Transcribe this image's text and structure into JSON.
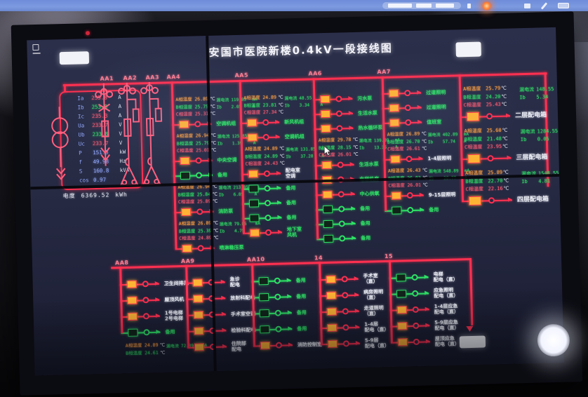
{
  "statusbar": {
    "record_dot_color": "#ff7b2d",
    "icons": [
      "status-pill",
      "record-dot-icon",
      "signal-icon",
      "pen-icon",
      "battery-icon"
    ]
  },
  "screen": {
    "title": "安国市医院新楼0.4kV一段接线图",
    "labels": {
      "phase_a": "A相温度",
      "phase_b": "B相温度",
      "phase_c": "C相温度",
      "leak": "漏电流",
      "ib": "Ib",
      "celsius": "℃",
      "ma": "mA",
      "amp": "A"
    },
    "incoming": {
      "meters": [
        {
          "k": "Ia",
          "v": "255.8",
          "u": "A",
          "c": "r"
        },
        {
          "k": "Ib",
          "v": "253.8",
          "u": "A",
          "c": "g"
        },
        {
          "k": "Ic",
          "v": "235.3",
          "u": "A",
          "c": "r"
        },
        {
          "k": "Ua",
          "v": "233.7",
          "u": "V",
          "c": "r"
        },
        {
          "k": "Ub",
          "v": "233.8",
          "u": "V",
          "c": "g"
        },
        {
          "k": "Uc",
          "v": "233.7",
          "u": "V",
          "c": "r"
        },
        {
          "k": "P",
          "v": "151.5",
          "u": "kW",
          "c": "b"
        },
        {
          "k": "f",
          "v": "49.98",
          "u": "Hz",
          "c": "b"
        },
        {
          "k": "S",
          "v": "160.8",
          "u": "kVA",
          "c": "b"
        },
        {
          "k": "cos",
          "v": "0.97",
          "u": "",
          "c": "b"
        }
      ],
      "energy": {
        "k": "电度",
        "v": "6369.52",
        "u": "kWh"
      }
    },
    "top_columns": [
      {
        "id": "AA1",
        "kind": "pt1"
      },
      {
        "id": "AA2",
        "kind": "pt2"
      },
      {
        "id": "AA3",
        "kind": "pt2"
      },
      {
        "id": "AA4",
        "rows": [
          {
            "t": "temp",
            "a": "26.89",
            "b": "25.75",
            "c": "25.31",
            "leak": "119.85",
            "ib": "2.05"
          },
          {
            "t": "f",
            "s": "on",
            "lc": "g",
            "label": "空调机组"
          },
          {
            "t": "temp",
            "a": "26.94",
            "b": "25.79",
            "c": "25.01",
            "leak": "125.85",
            "ib": "1.39"
          },
          {
            "t": "f",
            "s": "on",
            "lc": "g",
            "label": "中央空调"
          },
          {
            "t": "f",
            "s": "off",
            "lc": "g",
            "label": "备用"
          },
          {
            "t": "temp",
            "a": "26.94",
            "b": "25.84",
            "c": "25.89",
            "leak": "213.85",
            "ib": "6.85"
          },
          {
            "t": "f",
            "s": "on",
            "lc": "g",
            "label": "消防泵"
          },
          {
            "t": "temp",
            "a": "26.89",
            "b": "25.39",
            "c": "24.89",
            "leak": "79.85",
            "ib": "4.75"
          },
          {
            "t": "f",
            "s": "on",
            "lc": "g",
            "label": "喷淋稳压泵"
          }
        ]
      },
      {
        "id": "AA5",
        "rows": [
          {
            "t": "temp",
            "a": "24.89",
            "b": "23.81",
            "c": "27.34",
            "leak": "48.55",
            "ib": "3.34"
          },
          {
            "t": "f",
            "s": "on",
            "lc": "g",
            "label": "新风机组"
          },
          {
            "t": "f",
            "s": "on",
            "lc": "g",
            "label": "空调机组"
          },
          {
            "t": "temp",
            "a": "24.89",
            "b": "24.89",
            "c": "24.43",
            "leak": "131.85",
            "ib": "37.28"
          },
          {
            "t": "f",
            "s": "on",
            "lc": "w",
            "label": "配电室\n空调"
          },
          {
            "t": "f",
            "s": "off",
            "lc": "g",
            "label": "备用"
          },
          {
            "t": "f",
            "s": "off",
            "lc": "g",
            "label": "备用"
          },
          {
            "t": "f",
            "s": "off",
            "lc": "g",
            "label": "备用"
          },
          {
            "t": "f",
            "s": "on",
            "lc": "g",
            "label": "地下室\n风机"
          }
        ]
      },
      {
        "id": "AA6",
        "rows": [
          {
            "t": "f",
            "s": "on",
            "lc": "g",
            "label": "污水泵"
          },
          {
            "t": "f",
            "s": "on",
            "lc": "g",
            "label": "生活水泵"
          },
          {
            "t": "f",
            "s": "on",
            "lc": "g",
            "label": "热水循环泵"
          },
          {
            "t": "temp",
            "a": "29.78",
            "b": "28.15",
            "c": "26.01",
            "leak": "139.89",
            "ib": "13.35"
          },
          {
            "t": "f",
            "s": "on",
            "lc": "g",
            "label": "生活水泵"
          },
          {
            "t": "f",
            "s": "on",
            "lc": "g",
            "label": "电梯机房"
          },
          {
            "t": "f",
            "s": "on",
            "lc": "g",
            "label": "中心供氧"
          },
          {
            "t": "f",
            "s": "off",
            "lc": "g",
            "label": "备用"
          },
          {
            "t": "f",
            "s": "off",
            "lc": "g",
            "label": "备用"
          },
          {
            "t": "f",
            "s": "off",
            "lc": "g",
            "label": "备用"
          }
        ]
      },
      {
        "id": "AA7",
        "rows": [
          {
            "t": "f",
            "s": "on",
            "lc": "g",
            "label": "过道照明"
          },
          {
            "t": "f",
            "s": "on",
            "lc": "g",
            "label": "过道照明"
          },
          {
            "t": "f",
            "s": "on",
            "lc": "g",
            "label": "值班室"
          },
          {
            "t": "temp",
            "a": "26.89",
            "b": "26.70",
            "c": "26.61",
            "leak": "402.89",
            "ib": "57.74"
          },
          {
            "t": "f",
            "s": "on",
            "lc": "w",
            "label": "1-4层照明"
          },
          {
            "t": "temp",
            "a": "26.43",
            "b": "26.83",
            "c": "26.01",
            "leak": "548.89",
            "ib": "28.77"
          },
          {
            "t": "f",
            "s": "on",
            "lc": "w",
            "label": "9-15层照明"
          },
          {
            "t": "f",
            "s": "off",
            "lc": "g",
            "label": "备用"
          }
        ]
      },
      {
        "id": "",
        "kind": "big",
        "rows": [
          {
            "t": "temp",
            "a": "25.79",
            "b": "24.20",
            "c": "25.43",
            "leak": "148.55",
            "ib": "5.34"
          },
          {
            "t": "f",
            "s": "on",
            "lc": "w",
            "label": "二层配电箱"
          },
          {
            "t": "temp",
            "a": "25.60",
            "b": "21.48",
            "c": "23.95",
            "leak": "1284.55",
            "ib": "0.05"
          },
          {
            "t": "f",
            "s": "on",
            "lc": "w",
            "label": "三层配电箱"
          },
          {
            "t": "temp",
            "a": "25.89",
            "b": "22.70",
            "c": "22.16",
            "leak": "1548.55",
            "ib": "4.81"
          },
          {
            "t": "f",
            "s": "on",
            "lc": "w",
            "label": "四层配电箱"
          }
        ]
      }
    ],
    "bottom_columns": [
      {
        "id": "AA8",
        "rows": [
          {
            "t": "f",
            "s": "on",
            "lc": "w",
            "label": "卫生间排风"
          },
          {
            "t": "f",
            "s": "on",
            "lc": "w",
            "label": "屋顶风机"
          },
          {
            "t": "f",
            "s": "on",
            "lc": "w",
            "label": "1号电梯\n2号电梯"
          },
          {
            "t": "f",
            "s": "off",
            "lc": "g",
            "label": "备用"
          },
          {
            "t": "temp2",
            "a": "24.89",
            "b": "24.61",
            "leak": "72.89"
          }
        ]
      },
      {
        "id": "AA9",
        "rows": [
          {
            "t": "f",
            "s": "on",
            "lc": "w",
            "label": "急诊\n配电"
          },
          {
            "t": "f",
            "s": "on",
            "lc": "w",
            "label": "放射科配电"
          },
          {
            "t": "f",
            "s": "on",
            "lc": "w",
            "label": "手术室空调"
          },
          {
            "t": "f",
            "s": "on",
            "lc": "w",
            "label": "检验科配电"
          },
          {
            "t": "f",
            "s": "on",
            "lc": "w",
            "label": "住院部\n配电"
          }
        ]
      },
      {
        "id": "AA10",
        "rows": [
          {
            "t": "f",
            "s": "off",
            "lc": "g",
            "label": "备用"
          },
          {
            "t": "f",
            "s": "off",
            "lc": "g",
            "label": "备用"
          },
          {
            "t": "f",
            "s": "off",
            "lc": "g",
            "label": "备用"
          },
          {
            "t": "f",
            "s": "off",
            "lc": "g",
            "label": "备用"
          },
          {
            "t": "f",
            "s": "on",
            "lc": "w",
            "label": "消防控制室"
          }
        ]
      },
      {
        "id": "14",
        "rows": [
          {
            "t": "f",
            "s": "on",
            "lc": "w",
            "label": "手术室\n（直）"
          },
          {
            "t": "f",
            "s": "on",
            "lc": "w",
            "label": "病房照明\n（直）"
          },
          {
            "t": "f",
            "s": "on",
            "lc": "w",
            "label": "走道照明\n（直）"
          },
          {
            "t": "f",
            "s": "on",
            "lc": "w",
            "label": "1-4层\n配电（直）"
          },
          {
            "t": "f",
            "s": "on",
            "lc": "w",
            "label": "5-9层\n配电（直）"
          }
        ]
      },
      {
        "id": "15",
        "rows": [
          {
            "t": "f",
            "s": "off",
            "lc": "w",
            "label": "电梯\n配电（直）"
          },
          {
            "t": "f",
            "s": "off",
            "lc": "w",
            "label": "应急照明\n配电（直）"
          },
          {
            "t": "f",
            "s": "on",
            "lc": "w",
            "label": "1-4层应急\n配电（直）"
          },
          {
            "t": "f",
            "s": "on",
            "lc": "w",
            "label": "5-9层应急\n配电（直）"
          },
          {
            "t": "f",
            "s": "on",
            "lc": "w",
            "label": "屋顶应急\n配电（直）"
          }
        ]
      }
    ]
  }
}
